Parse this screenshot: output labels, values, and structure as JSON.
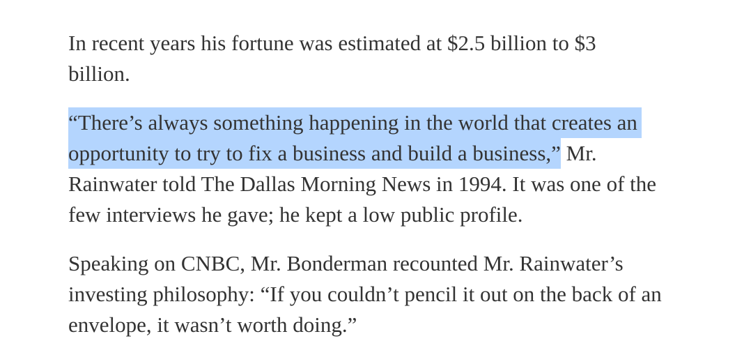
{
  "article": {
    "highlight_color": "#b4d5fe",
    "text_color": "#333333",
    "paragraphs": [
      {
        "lines": [
          "In recent years his fortune was estimated at $2.5 billion to $3",
          "billion."
        ]
      },
      {
        "highlighted_lines": [
          "“There’s always something happening in the world that creates an",
          "opportunity to try to fix a business and build a business,”"
        ],
        "line2_rest": " Mr.",
        "lines": [
          "Rainwater told The Dallas Morning News in 1994. It was one of the",
          "few interviews he gave; he kept a low public profile."
        ]
      },
      {
        "lines": [
          "Speaking on CNBC, Mr. Bonderman recounted Mr. Rainwater’s",
          "investing philosophy: “If you couldn’t pencil it out on the back of an",
          "envelope, it wasn’t worth doing.”"
        ]
      }
    ]
  }
}
